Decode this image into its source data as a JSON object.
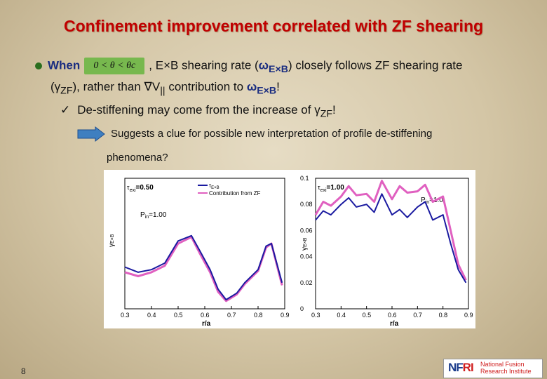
{
  "title": "Confinement improvement correlated with ZF shearing",
  "bullet1": {
    "when": "When",
    "condition": "0 < θ < θc",
    "text_a": ", E×B shearing rate (",
    "omega_sym": "ω",
    "omega_sub": "E×B",
    "text_b": ") closely follows ZF shearing rate",
    "line2_a": "(",
    "gamma_sym": "γ",
    "gamma_sub": "ZF",
    "line2_b": "), rather than ∇V",
    "par_sub": "||",
    "line2_c": " contribution to ",
    "omega2_sym": "ω",
    "omega2_sub": "E×B",
    "line2_d": "!"
  },
  "sub_bullet": {
    "check": "✓",
    "text": "De-stiffening may come from the increase of ",
    "gamma_sym": "γ",
    "gamma_sub": "ZF",
    "end": "!"
  },
  "suggest": {
    "line1": "Suggests a clue for possible new interpretation of profile de-stiffening",
    "line2": "phenomena?"
  },
  "left_panel": {
    "tau_label": "τ",
    "tau_sub": "exi",
    "tau_value": "=0.50",
    "legend_black": "τ",
    "legend_black_sub": "E×B",
    "legend_magenta": "Contribution from ZF",
    "pin": "P",
    "pin_sub": "in",
    "pin_val": "=1.00",
    "ylabel": "γ",
    "ylabel_sub": "E×B",
    "xlabel": "r/a",
    "x_ticks": [
      "0.3",
      "0.4",
      "0.5",
      "0.6",
      "0.7",
      "0.8",
      "0.9"
    ]
  },
  "right_panel": {
    "tau_label": "τ",
    "tau_sub": "exi",
    "tau_value": "=1.00",
    "pin": "P",
    "pin_sub": "in",
    "pin_val": "=1.0",
    "ylabel": "γ",
    "ylabel_sub": "E×B",
    "xlabel": "r/a",
    "y_ticks": [
      "0.1",
      "0.08",
      "0.06",
      "0.04",
      "0.02",
      "0"
    ],
    "x_ticks": [
      "0.3",
      "0.4",
      "0.5",
      "0.6",
      "0.7",
      "0.8",
      "0.9"
    ]
  },
  "chart_data": [
    {
      "type": "line",
      "xlabel": "r/a",
      "ylabel": "γE×B",
      "xlim": [
        0.3,
        0.9
      ],
      "ylim": [
        0,
        0.1
      ],
      "series": [
        {
          "name": "τE×B",
          "color": "#1a1aa0",
          "x": [
            0.3,
            0.35,
            0.4,
            0.45,
            0.5,
            0.55,
            0.58,
            0.62,
            0.65,
            0.68,
            0.72,
            0.75,
            0.8,
            0.83,
            0.85,
            0.87,
            0.89
          ],
          "y": [
            0.032,
            0.028,
            0.03,
            0.035,
            0.052,
            0.056,
            0.045,
            0.03,
            0.015,
            0.007,
            0.012,
            0.02,
            0.03,
            0.048,
            0.05,
            0.035,
            0.02
          ]
        },
        {
          "name": "Contribution from ZF",
          "color": "#e060c0",
          "x": [
            0.3,
            0.35,
            0.4,
            0.45,
            0.5,
            0.55,
            0.58,
            0.62,
            0.65,
            0.68,
            0.72,
            0.75,
            0.8,
            0.83,
            0.85,
            0.87,
            0.89
          ],
          "y": [
            0.028,
            0.025,
            0.028,
            0.033,
            0.05,
            0.055,
            0.043,
            0.028,
            0.013,
            0.006,
            0.011,
            0.019,
            0.029,
            0.047,
            0.05,
            0.034,
            0.018
          ]
        }
      ]
    },
    {
      "type": "line",
      "xlabel": "r/a",
      "ylabel": "γE×B",
      "xlim": [
        0.3,
        0.9
      ],
      "ylim": [
        0,
        0.1
      ],
      "series": [
        {
          "name": "τE×B",
          "color": "#1a1aa0",
          "x": [
            0.3,
            0.33,
            0.36,
            0.4,
            0.43,
            0.46,
            0.5,
            0.53,
            0.56,
            0.6,
            0.63,
            0.66,
            0.7,
            0.73,
            0.76,
            0.8,
            0.83,
            0.86,
            0.89
          ],
          "y": [
            0.068,
            0.075,
            0.072,
            0.08,
            0.085,
            0.078,
            0.08,
            0.074,
            0.088,
            0.072,
            0.076,
            0.07,
            0.078,
            0.082,
            0.068,
            0.072,
            0.05,
            0.03,
            0.02
          ]
        },
        {
          "name": "Contribution from ZF",
          "color": "#e060c0",
          "x": [
            0.3,
            0.33,
            0.36,
            0.4,
            0.43,
            0.46,
            0.5,
            0.53,
            0.56,
            0.6,
            0.63,
            0.66,
            0.7,
            0.73,
            0.76,
            0.8,
            0.83,
            0.86,
            0.89
          ],
          "y": [
            0.072,
            0.082,
            0.079,
            0.086,
            0.094,
            0.087,
            0.088,
            0.082,
            0.098,
            0.084,
            0.094,
            0.089,
            0.09,
            0.095,
            0.082,
            0.086,
            0.06,
            0.034,
            0.022
          ]
        }
      ]
    }
  ],
  "page_number": "8",
  "logo": {
    "mark_a": "NF",
    "mark_b": "RI",
    "sub": "National Fusion Research Institute"
  }
}
